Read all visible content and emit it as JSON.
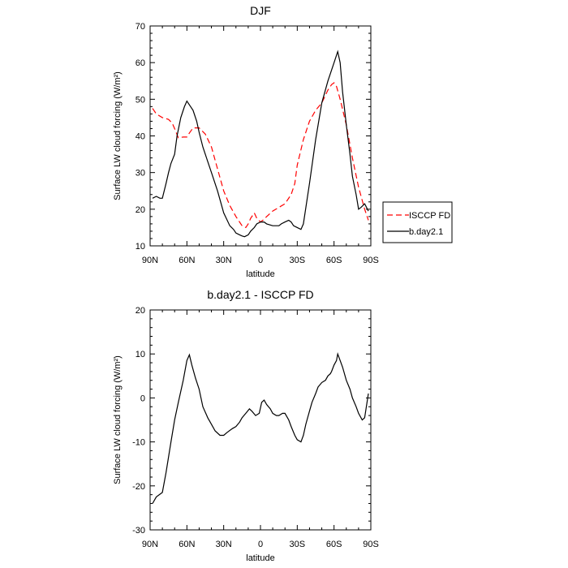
{
  "chart_data": [
    {
      "type": "line",
      "title": "DJF",
      "xlabel": "latitude",
      "ylabel": "Surface LW cloud forcing (W/m²)",
      "xlim": [
        90,
        -90
      ],
      "ylim": [
        10,
        70
      ],
      "xticks": [
        90,
        60,
        30,
        0,
        -30,
        -60,
        -90
      ],
      "xtick_labels": [
        "90N",
        "60N",
        "30N",
        "0",
        "30S",
        "60S",
        "90S"
      ],
      "yticks": [
        10,
        20,
        30,
        40,
        50,
        60,
        70
      ],
      "ytick_labels": [
        "10",
        "20",
        "30",
        "40",
        "50",
        "60",
        "70"
      ],
      "legend": {
        "position": "right",
        "entries": [
          "ISCCP FD",
          "b.day2.1"
        ]
      },
      "series": [
        {
          "name": "ISCCP FD",
          "color": "#ff0000",
          "dash": "dashed",
          "x": [
            88,
            85,
            80,
            75,
            72,
            70,
            67,
            63,
            60,
            58,
            55,
            50,
            45,
            40,
            35,
            30,
            25,
            20,
            15,
            12,
            10,
            8,
            5,
            3,
            0,
            -2,
            -5,
            -10,
            -15,
            -20,
            -25,
            -28,
            -30,
            -35,
            -40,
            -45,
            -50,
            -55,
            -58,
            -60,
            -62,
            -65,
            -70,
            -75,
            -80,
            -85,
            -88
          ],
          "y": [
            47.5,
            46,
            45,
            44.5,
            43.5,
            42,
            39.5,
            39.7,
            39.7,
            40.8,
            42.2,
            42.2,
            40.5,
            37,
            31,
            25,
            21,
            18,
            15.5,
            15,
            16,
            17.5,
            19,
            17.5,
            16.5,
            17,
            18,
            19.5,
            20.5,
            21.5,
            24,
            27,
            32,
            39,
            44,
            47,
            49,
            52.5,
            54,
            54.5,
            53.5,
            50,
            43,
            34,
            26,
            20,
            17
          ]
        },
        {
          "name": "b.day2.1",
          "color": "#000000",
          "dash": "solid",
          "x": [
            88,
            85,
            82,
            80,
            77,
            75,
            73,
            70,
            68,
            65,
            62,
            60,
            57,
            55,
            52,
            50,
            47,
            45,
            40,
            35,
            30,
            25,
            22,
            20,
            17,
            15,
            13,
            10,
            8,
            5,
            3,
            0,
            -3,
            -5,
            -10,
            -12,
            -15,
            -17,
            -20,
            -23,
            -25,
            -27,
            -30,
            -33,
            -35,
            -40,
            -45,
            -50,
            -55,
            -60,
            -62,
            -63,
            -65,
            -67,
            -70,
            -73,
            -75,
            -78,
            -80,
            -82,
            -85,
            -88
          ],
          "y": [
            23,
            23.5,
            23,
            23,
            27,
            30,
            32.5,
            35,
            40,
            45,
            48,
            49.5,
            48,
            47,
            44,
            41,
            37,
            35,
            30,
            25,
            19,
            15.5,
            14.5,
            13.5,
            13,
            12.7,
            12.5,
            13,
            14,
            15,
            16,
            16.5,
            16.5,
            16,
            15.5,
            15.5,
            15.5,
            16,
            16.5,
            17,
            16.5,
            15.5,
            15,
            14.5,
            16,
            27,
            39,
            49,
            55,
            60,
            62,
            63,
            60,
            52,
            43,
            35,
            29,
            24,
            20,
            20.5,
            21.5,
            19.5
          ]
        }
      ]
    },
    {
      "type": "line",
      "title": "b.day2.1 - ISCCP FD",
      "xlabel": "latitude",
      "ylabel": "Surface LW cloud forcing (W/m²)",
      "xlim": [
        90,
        -90
      ],
      "ylim": [
        -30,
        20
      ],
      "xticks": [
        90,
        60,
        30,
        0,
        -30,
        -60,
        -90
      ],
      "xtick_labels": [
        "90N",
        "60N",
        "30N",
        "0",
        "30S",
        "60S",
        "90S"
      ],
      "yticks": [
        -30,
        -20,
        -10,
        0,
        10,
        20
      ],
      "ytick_labels": [
        "-30",
        "-20",
        "-10",
        "0",
        "10",
        "20"
      ],
      "series": [
        {
          "name": "b.day2.1 - ISCCP FD",
          "color": "#000000",
          "dash": "solid",
          "x": [
            88,
            85,
            80,
            77,
            73,
            70,
            67,
            63,
            60,
            58,
            56,
            53,
            50,
            47,
            43,
            40,
            37,
            33,
            30,
            27,
            23,
            20,
            17,
            15,
            12,
            9,
            7,
            4,
            1,
            -1,
            -3,
            -5,
            -8,
            -10,
            -13,
            -15,
            -18,
            -20,
            -23,
            -25,
            -28,
            -30,
            -33,
            -35,
            -37,
            -40,
            -42,
            -45,
            -47,
            -50,
            -53,
            -55,
            -57,
            -58,
            -60,
            -62,
            -63,
            -65,
            -67,
            -70,
            -73,
            -75,
            -78,
            -80,
            -83,
            -85,
            -88
          ],
          "y": [
            -24,
            -22.5,
            -21.5,
            -17,
            -10,
            -5,
            -1,
            4,
            8.5,
            9.8,
            7.5,
            4.5,
            2,
            -2,
            -4.5,
            -6,
            -7.5,
            -8.5,
            -8.5,
            -7.8,
            -7,
            -6.5,
            -5.5,
            -4.5,
            -3.5,
            -2.5,
            -3,
            -4,
            -3.5,
            -1,
            -0.5,
            -1.5,
            -2.5,
            -3.5,
            -4,
            -4,
            -3.5,
            -3.5,
            -5,
            -6.5,
            -8.5,
            -9.5,
            -10,
            -8.5,
            -6,
            -3,
            -1,
            1,
            2.5,
            3.5,
            4,
            5,
            5.5,
            6,
            7.5,
            8.5,
            10,
            8.5,
            7,
            4,
            2,
            0,
            -2,
            -3.5,
            -5,
            -4.5,
            1
          ]
        }
      ]
    }
  ]
}
